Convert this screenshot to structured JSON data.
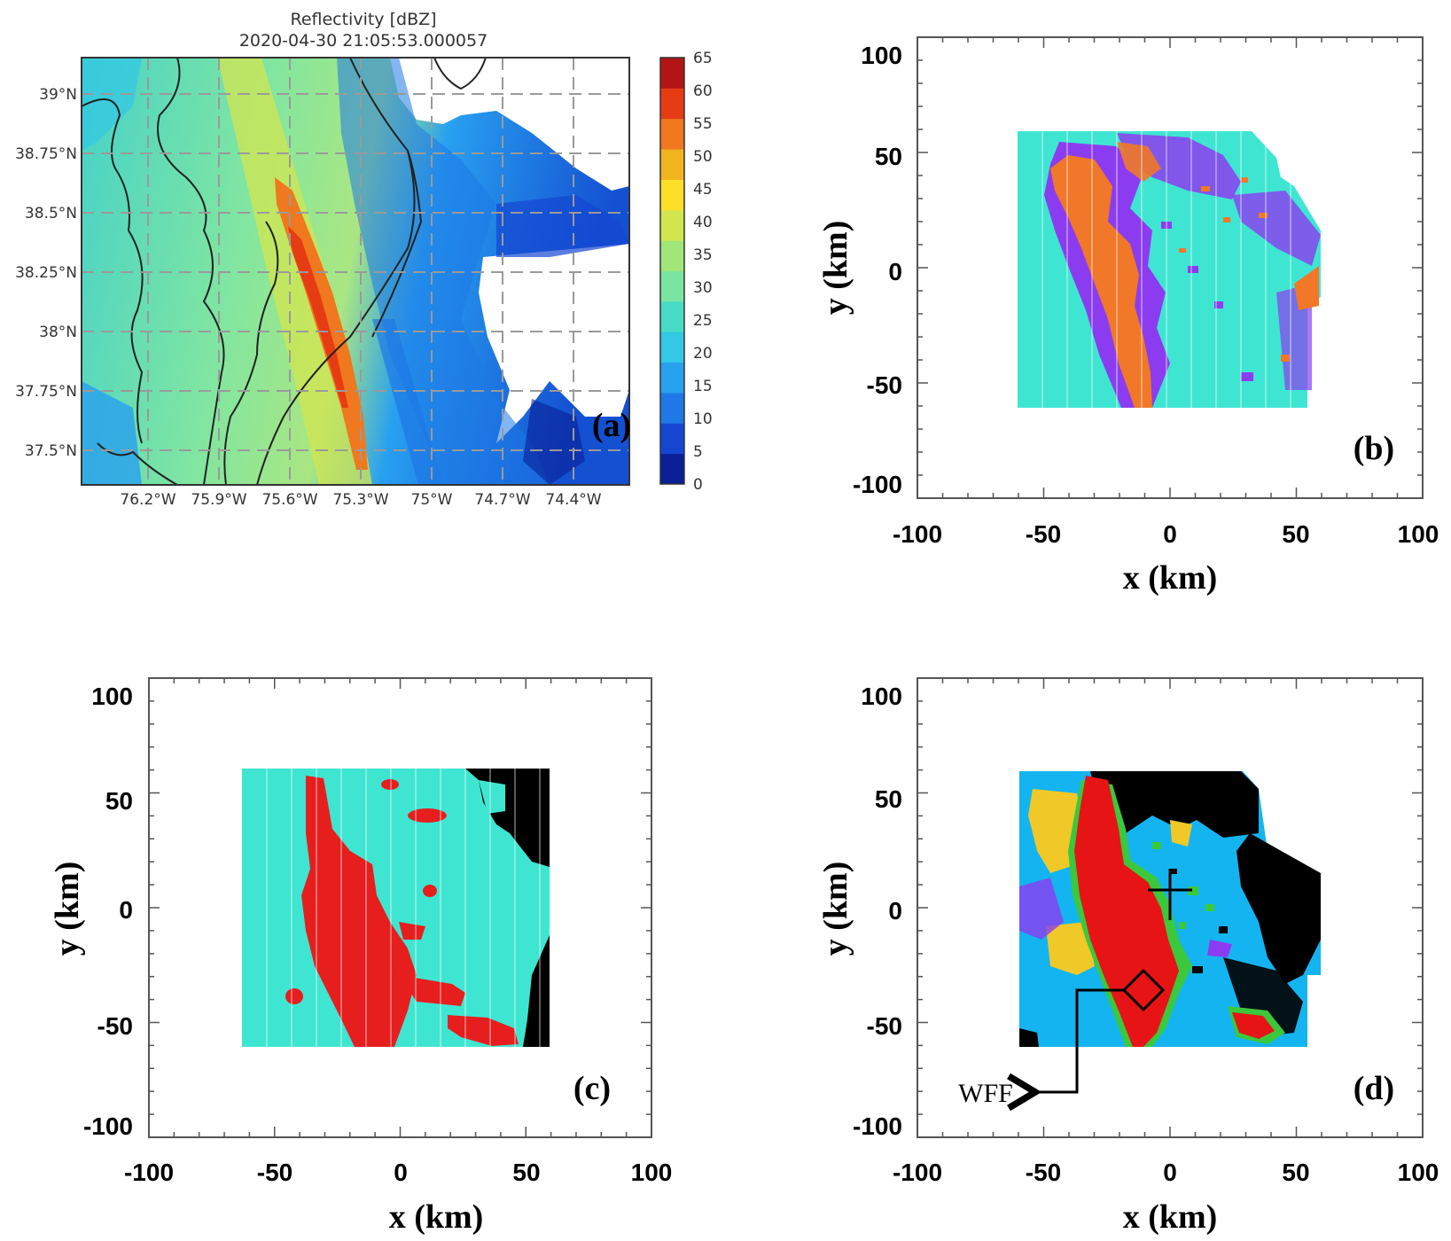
{
  "chart_data": [
    {
      "panel": "a",
      "type": "heatmap",
      "title": "Reflectivity [dBZ]",
      "subtitle": "2020-04-30 21:05:53.000057",
      "panel_label": "(a)",
      "x_ticks": [
        "76.2°W",
        "75.9°W",
        "75.6°W",
        "75.3°W",
        "75°W",
        "74.7°W",
        "74.4°W"
      ],
      "x_values": [
        -76.2,
        -75.9,
        -75.6,
        -75.3,
        -75.0,
        -74.7,
        -74.4
      ],
      "y_ticks": [
        "39°N",
        "38.75°N",
        "38.5°N",
        "38.25°N",
        "38°N",
        "37.75°N",
        "37.5°N"
      ],
      "y_values": [
        39.0,
        38.75,
        38.5,
        38.25,
        38.0,
        37.75,
        37.5
      ],
      "xlim": [
        -76.5,
        -74.2
      ],
      "ylim": [
        37.35,
        39.15
      ],
      "grid": true,
      "colorbar": {
        "ticks": [
          "65",
          "60",
          "55",
          "50",
          "45",
          "40",
          "35",
          "30",
          "25",
          "20",
          "15",
          "10",
          "5",
          "0"
        ],
        "range": [
          0,
          65
        ],
        "colors": [
          "#0a1e96",
          "#1446d2",
          "#1e78e6",
          "#28a0f0",
          "#32c8e6",
          "#46dcc8",
          "#78e6a0",
          "#a0e678",
          "#d2e650",
          "#fade28",
          "#f0b41e",
          "#f0781e",
          "#e63c14",
          "#b41414"
        ]
      }
    },
    {
      "panel": "b",
      "type": "heatmap",
      "panel_label": "(b)",
      "xlabel": "x (km)",
      "ylabel": "y (km)",
      "xlim": [
        -100,
        100
      ],
      "ylim": [
        -100,
        100
      ],
      "x_ticks": [
        "-100",
        "-50",
        "0",
        "50",
        "100"
      ],
      "x_values": [
        -100,
        -50,
        0,
        50,
        100
      ],
      "y_ticks": [
        "100",
        "50",
        "0",
        "-50",
        "-100"
      ],
      "y_values": [
        100,
        50,
        0,
        -50,
        -100
      ],
      "colors": {
        "background": "#3ee6d2",
        "class1": "#f07828",
        "class2": "#8c3cf0"
      }
    },
    {
      "panel": "c",
      "type": "heatmap",
      "panel_label": "(c)",
      "xlabel": "x (km)",
      "ylabel": "y (km)",
      "xlim": [
        -100,
        100
      ],
      "ylim": [
        -100,
        100
      ],
      "x_ticks": [
        "-100",
        "-50",
        "0",
        "50",
        "100"
      ],
      "x_values": [
        -100,
        -50,
        0,
        50,
        100
      ],
      "y_ticks": [
        "100",
        "50",
        "0",
        "-50",
        "-100"
      ],
      "y_values": [
        100,
        50,
        0,
        -50,
        -100
      ],
      "colors": {
        "background": "#3ee6d2",
        "convective": "#e61e1e",
        "none": "#000000"
      }
    },
    {
      "panel": "d",
      "type": "heatmap",
      "panel_label": "(d)",
      "xlabel": "x (km)",
      "ylabel": "y (km)",
      "xlim": [
        -100,
        100
      ],
      "ylim": [
        -100,
        100
      ],
      "x_ticks": [
        "-100",
        "-50",
        "0",
        "50",
        "100"
      ],
      "x_values": [
        -100,
        -50,
        0,
        50,
        100
      ],
      "y_ticks": [
        "100",
        "50",
        "0",
        "-50",
        "-100"
      ],
      "y_values": [
        100,
        50,
        0,
        -50,
        -100
      ],
      "annotation": "WFF",
      "radar_location_km": [
        0,
        0
      ],
      "wff_location_km": [
        -10,
        -32
      ],
      "colors": {
        "background": "#14b4f0",
        "red": "#e61414",
        "yellow": "#f0c828",
        "green": "#3cc83c",
        "purple": "#8c3cf0",
        "none": "#000000"
      }
    }
  ]
}
